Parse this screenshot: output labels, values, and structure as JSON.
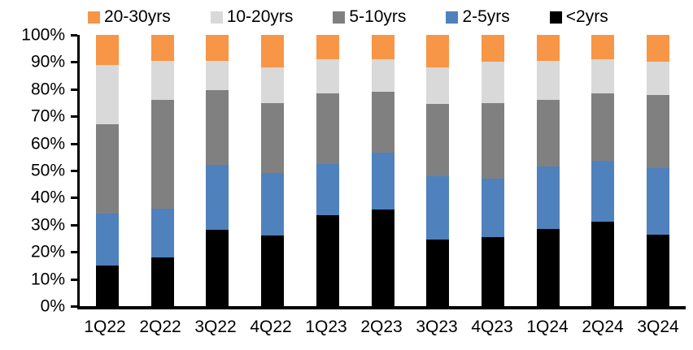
{
  "chart_data": {
    "type": "bar",
    "variant": "100-percent-stacked-column",
    "title": "",
    "categories": [
      "1Q22",
      "2Q22",
      "3Q22",
      "4Q22",
      "1Q23",
      "2Q23",
      "3Q23",
      "4Q23",
      "1Q24",
      "2Q24",
      "3Q24"
    ],
    "series": [
      {
        "name": "20-30yrs",
        "color": "#F79646",
        "values": [
          11,
          9.5,
          9.5,
          12,
          9,
          9,
          12,
          10,
          9.5,
          9,
          10
        ]
      },
      {
        "name": "10-20yrs",
        "color": "#D9D9D9",
        "values": [
          22,
          14.5,
          11,
          13,
          12.5,
          12,
          13.5,
          15,
          14.5,
          12.5,
          12
        ]
      },
      {
        "name": "5-10yrs",
        "color": "#808080",
        "values": [
          33,
          40,
          27.5,
          26,
          26,
          22.5,
          26.5,
          28,
          24.5,
          25,
          27
        ]
      },
      {
        "name": "2-5yrs",
        "color": "#4F81BD",
        "values": [
          19,
          18,
          24,
          23,
          19,
          21,
          23.5,
          21.5,
          23,
          22.5,
          24.5
        ]
      },
      {
        "name": "<2yrs",
        "color": "#000000",
        "values": [
          15,
          18,
          28,
          26,
          33.5,
          35.5,
          24.5,
          25.5,
          28.5,
          31,
          26.5
        ]
      }
    ],
    "stack_order_bottom_to_top": [
      "<2yrs",
      "2-5yrs",
      "5-10yrs",
      "10-20yrs",
      "20-30yrs"
    ],
    "y_axis": {
      "min": 0,
      "max": 100,
      "tick_step": 10,
      "tick_labels": [
        "0%",
        "10%",
        "20%",
        "30%",
        "40%",
        "50%",
        "60%",
        "70%",
        "80%",
        "90%",
        "100%"
      ]
    },
    "legend_position": "top",
    "grid": false,
    "axis_color": "#000000",
    "background_color": "#FFFFFF"
  }
}
